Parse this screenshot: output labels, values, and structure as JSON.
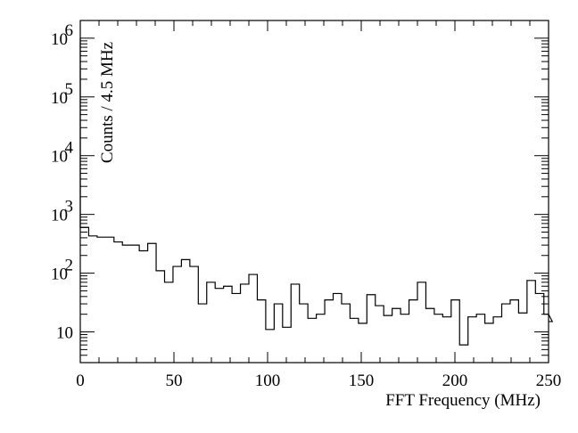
{
  "chart_data": {
    "type": "histogram",
    "title": "",
    "xlabel": "FFT Frequency (MHz)",
    "ylabel": "Counts / 4.5 MHz",
    "xlim": [
      0,
      250
    ],
    "ylim": [
      3,
      2000000
    ],
    "yscale": "log",
    "grid": false,
    "x_ticks": [
      {
        "value": 0,
        "label": "0"
      },
      {
        "value": 50,
        "label": "50"
      },
      {
        "value": 100,
        "label": "100"
      },
      {
        "value": 150,
        "label": "150"
      },
      {
        "value": 200,
        "label": "200"
      },
      {
        "value": 250,
        "label": "250"
      }
    ],
    "y_ticks": [
      {
        "value": 10,
        "label": "10",
        "exp": ""
      },
      {
        "value": 100,
        "label": "10",
        "exp": "2"
      },
      {
        "value": 1000,
        "label": "10",
        "exp": "3"
      },
      {
        "value": 10000,
        "label": "10",
        "exp": "4"
      },
      {
        "value": 100000,
        "label": "10",
        "exp": "5"
      },
      {
        "value": 1000000,
        "label": "10",
        "exp": "6"
      }
    ],
    "bin_width": 4.5,
    "first_bin_start": 0,
    "values": [
      600,
      430,
      410,
      410,
      340,
      300,
      300,
      240,
      320,
      110,
      70,
      130,
      170,
      130,
      30,
      70,
      55,
      60,
      45,
      65,
      95,
      35,
      11,
      30,
      12,
      65,
      30,
      17,
      20,
      35,
      45,
      30,
      17,
      14,
      43,
      28,
      19,
      25,
      20,
      35,
      70,
      25,
      20,
      18,
      35,
      6,
      18,
      20,
      14,
      18,
      30,
      35,
      21,
      75,
      45,
      20,
      15
    ]
  }
}
